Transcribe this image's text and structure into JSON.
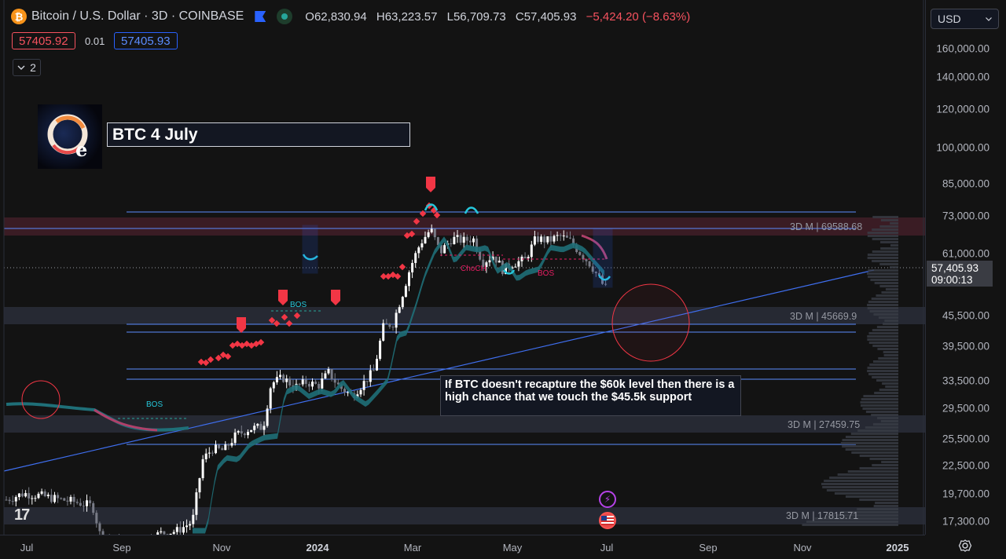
{
  "legend": {
    "symbol_icon": "bitcoin-icon",
    "title": "Bitcoin / U.S. Dollar · 3D · COINBASE",
    "open_label": "O",
    "open": "62,830.94",
    "high_label": "H",
    "high": "63,223.57",
    "low_label": "L",
    "low": "56,709.73",
    "close_label": "C",
    "close": "57,405.93",
    "change": "−5,424.20 (−8.63%)"
  },
  "trade": {
    "sell_price": "57405.92",
    "spread": "0.01",
    "buy_price": "57405.93"
  },
  "indicators_toggle": {
    "count": "2"
  },
  "annotations": {
    "title": "BTC 4 July",
    "note": "If BTC doesn't recapture the $60k level then there is a high chance that we touch the $45.5k support",
    "logo_text": "Oe",
    "bos_labels": [
      "BOS",
      "BOS",
      "BOS"
    ],
    "choch_label": "ChoCH"
  },
  "zones": [
    {
      "label": "3D M | 69588.68",
      "price": 69588.68
    },
    {
      "label": "3D M | 45669.9",
      "price": 45669.9
    },
    {
      "label": "3D M | 27459.75",
      "price": 27459.75
    },
    {
      "label": "3D M | 17815.71",
      "price": 17815.71
    }
  ],
  "price_axis": {
    "currency": "USD",
    "ticks": [
      "160,000.00",
      "140,000.00",
      "120,000.00",
      "100,000.00",
      "85,000.00",
      "73,000.00",
      "61,000.00",
      "45,500.00",
      "39,500.00",
      "33,500.00",
      "29,500.00",
      "25,500.00",
      "22,500.00",
      "19,700.00",
      "17,300.00"
    ],
    "tick_values": [
      160000,
      140000,
      120000,
      100000,
      85000,
      73000,
      61000,
      45500,
      39500,
      33500,
      29500,
      25500,
      22500,
      19700,
      17300
    ],
    "last_price": "57,405.93",
    "countdown": "09:00:13"
  },
  "time_axis": {
    "labels": [
      "Jul",
      "Sep",
      "Nov",
      "2024",
      "Mar",
      "May",
      "Jul",
      "Sep",
      "Nov",
      "2025"
    ],
    "year_labels": [
      "2024",
      "2025"
    ]
  },
  "colors": {
    "bg": "#131313",
    "up": "#ffffff",
    "down": "#787b86",
    "signal": "#f23645",
    "trend_band": "#1f6f78",
    "hline": "#5b8cff",
    "zone_red": "#3a1c22",
    "zone_gray": "#2a2e39"
  }
}
